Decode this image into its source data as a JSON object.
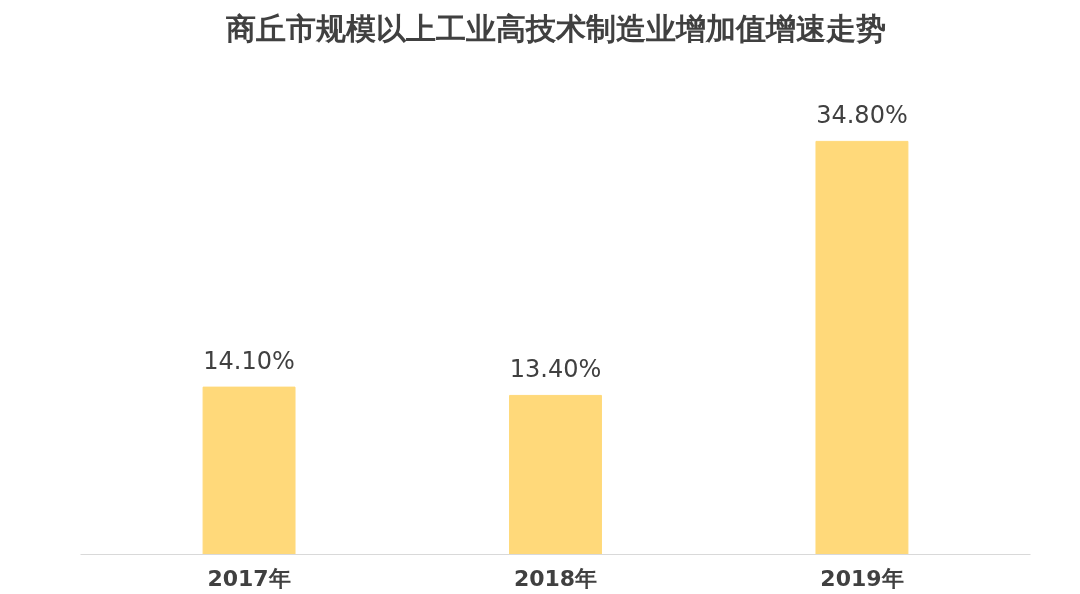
{
  "chart_data": {
    "type": "bar",
    "title": "商丘市规模以上工业高技术制造业增加值增速走势",
    "categories": [
      "2017年",
      "2018年",
      "2019年"
    ],
    "values": [
      14.1,
      13.4,
      34.8
    ],
    "value_labels": [
      "14.10%",
      "13.40%",
      "34.80%"
    ],
    "color": "#ffd97a",
    "grid": false
  }
}
